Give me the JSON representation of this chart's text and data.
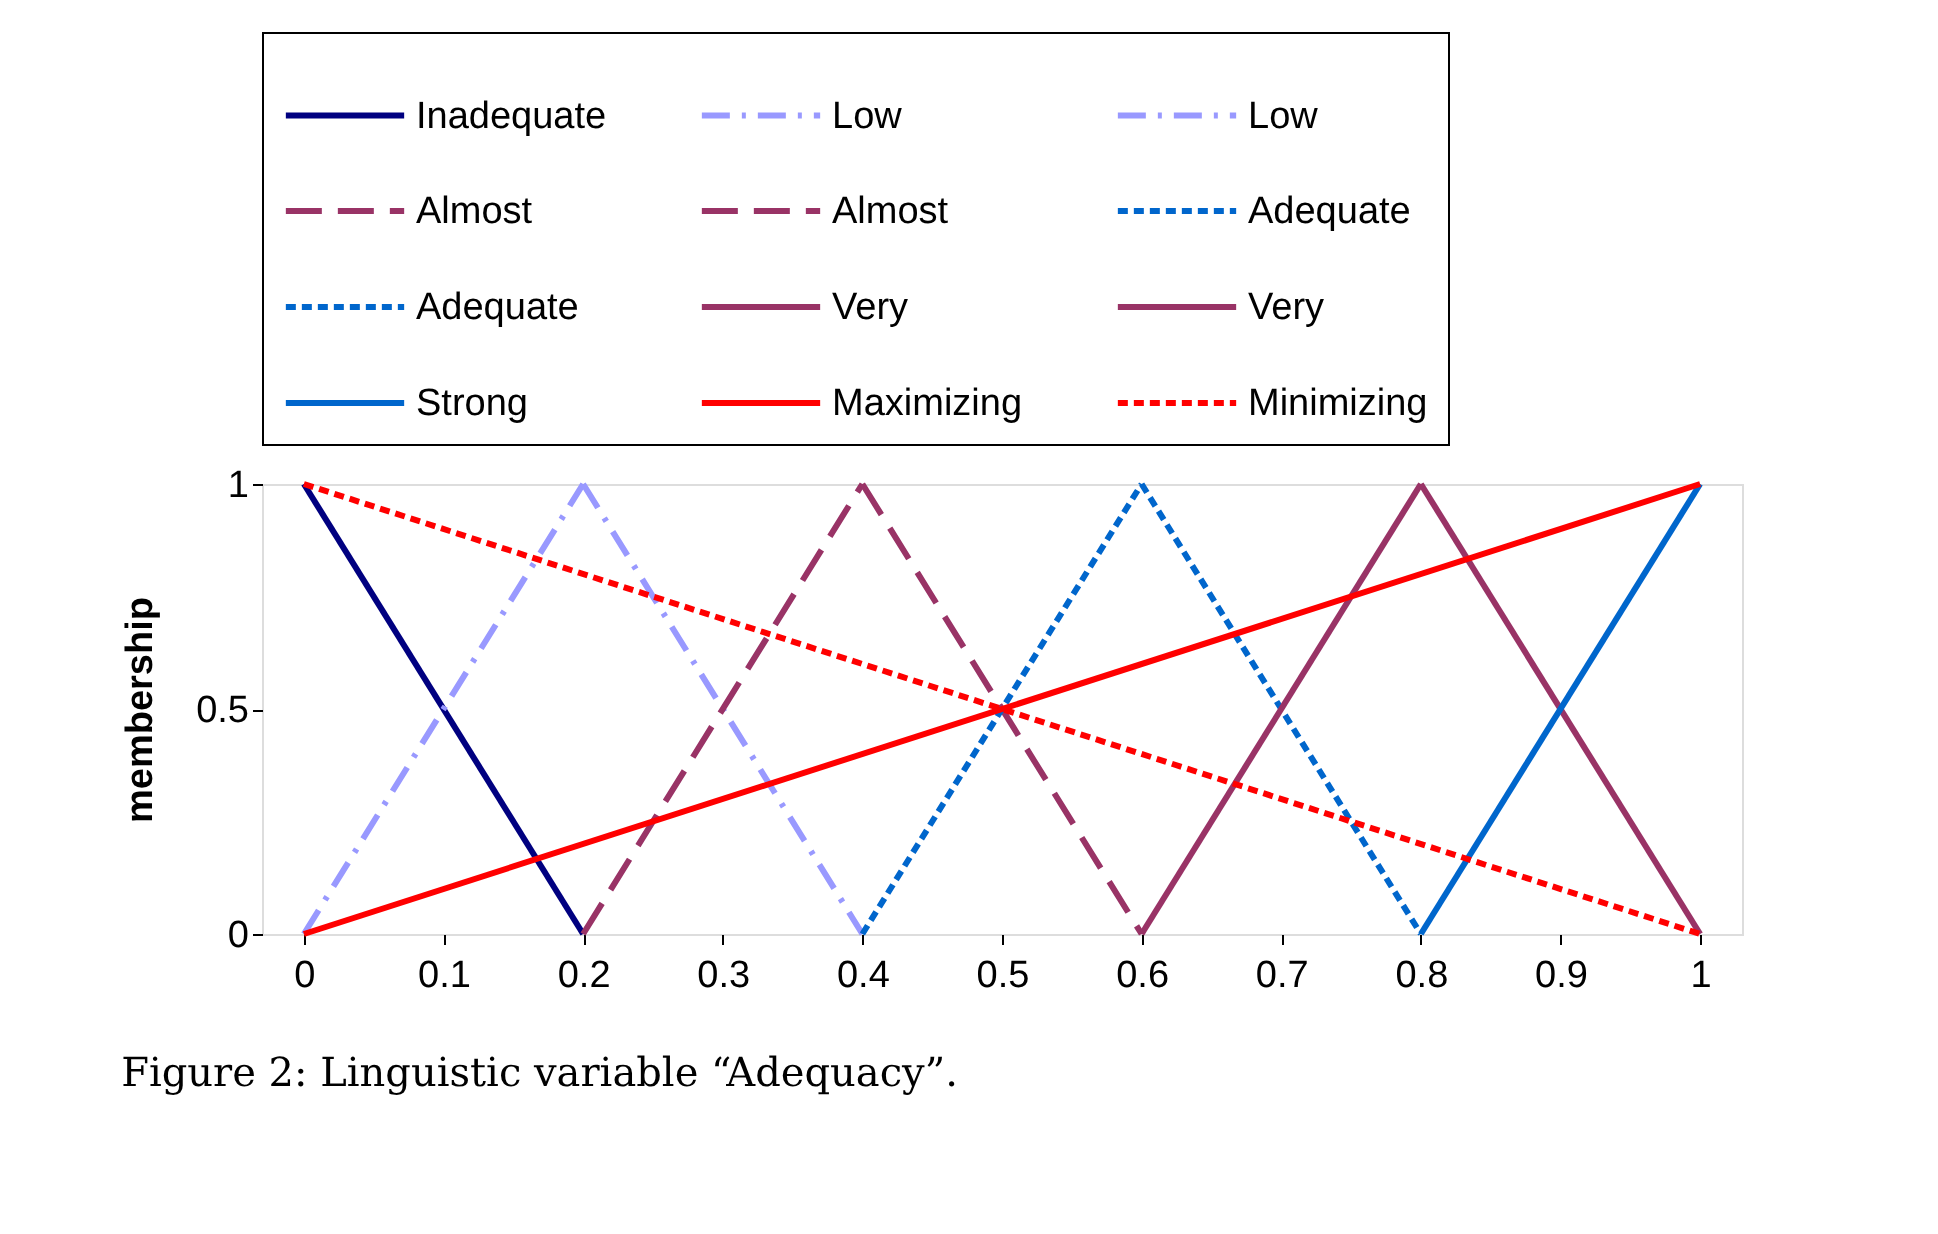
{
  "chart_data": {
    "type": "line",
    "ylabel": "membership",
    "xlim": [
      -0.03,
      1.03
    ],
    "ylim": [
      0,
      1
    ],
    "xticks": [
      0,
      0.1,
      0.2,
      0.3,
      0.4,
      0.5,
      0.6,
      0.7,
      0.8,
      0.9,
      1
    ],
    "yticks": [
      0,
      0.5,
      1
    ],
    "grid": false,
    "legend": "top",
    "marker": "none",
    "annotations": [
      "Figure 2: Linguistic variable “Adequacy”."
    ],
    "series": [
      {
        "name": "Inadequate",
        "color": "#000080",
        "line_style": "solid",
        "x": [
          0,
          0.2
        ],
        "values": [
          1,
          0
        ]
      },
      {
        "name": "Low",
        "color": "#9999ff",
        "line_style": "dashdot",
        "x": [
          0,
          0.2
        ],
        "values": [
          0,
          1
        ]
      },
      {
        "name": "Low",
        "color": "#9999ff",
        "line_style": "dashdot",
        "x": [
          0.2,
          0.4
        ],
        "values": [
          1,
          0
        ]
      },
      {
        "name": "Almost",
        "color": "#993366",
        "line_style": "dashed",
        "x": [
          0.2,
          0.4
        ],
        "values": [
          0,
          1
        ]
      },
      {
        "name": "Almost",
        "color": "#993366",
        "line_style": "dashed",
        "x": [
          0.4,
          0.6
        ],
        "values": [
          1,
          0
        ]
      },
      {
        "name": "Adequate",
        "color": "#0066cc",
        "line_style": "dotted",
        "x": [
          0.4,
          0.6
        ],
        "values": [
          0,
          1
        ]
      },
      {
        "name": "Adequate",
        "color": "#0066cc",
        "line_style": "dotted",
        "x": [
          0.6,
          0.8
        ],
        "values": [
          1,
          0
        ]
      },
      {
        "name": "Very",
        "color": "#993366",
        "line_style": "solid",
        "x": [
          0.6,
          0.8
        ],
        "values": [
          0,
          1
        ]
      },
      {
        "name": "Very",
        "color": "#993366",
        "line_style": "solid",
        "x": [
          0.8,
          1
        ],
        "values": [
          1,
          0
        ]
      },
      {
        "name": "Strong",
        "color": "#0066cc",
        "line_style": "solid",
        "x": [
          0.8,
          1
        ],
        "values": [
          0,
          1
        ]
      },
      {
        "name": "Maximizing",
        "color": "#ff0000",
        "line_style": "solid",
        "x": [
          0,
          1
        ],
        "values": [
          0,
          1
        ]
      },
      {
        "name": "Minimizing",
        "color": "#ff0000",
        "line_style": "dotted",
        "x": [
          0,
          1
        ],
        "values": [
          1,
          0
        ]
      }
    ]
  }
}
